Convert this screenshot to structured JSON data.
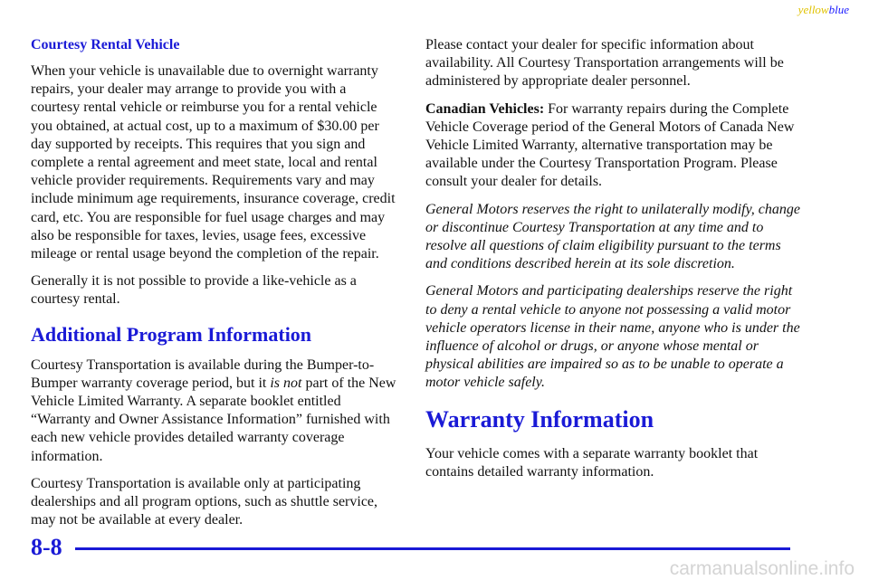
{
  "header": {
    "mark_yellow": "yellow",
    "mark_blue": "blue"
  },
  "left": {
    "rental_heading": "Courtesy Rental Vehicle",
    "rental_para": "When your vehicle is unavailable due to overnight warranty repairs, your dealer may arrange to provide you with a courtesy rental vehicle or reimburse you for a rental vehicle you obtained, at actual cost, up to a maximum of $30.00 per day supported by receipts. This requires that you sign and complete a rental agreement and meet state, local and rental vehicle provider requirements. Requirements vary and may include minimum age requirements, insurance coverage, credit card, etc. You are responsible for fuel usage charges and may also be responsible for taxes, levies, usage fees, excessive mileage or rental usage beyond the completion of the repair.",
    "likevehicle_para": "Generally it is not possible to provide a like-vehicle as a courtesy rental.",
    "program_heading": "Additional Program Information",
    "program_para_before": "Courtesy Transportation is available during the Bumper-to-Bumper warranty coverage period, but it ",
    "program_para_italic": "is not",
    "program_para_after": " part of the New Vehicle Limited Warranty. A separate booklet entitled “Warranty and Owner Assistance Information” furnished with each new vehicle provides detailed warranty coverage information.",
    "dealerships_para": "Courtesy Transportation is available only at participating dealerships and all program options, such as shuttle service, may not be available at every dealer."
  },
  "right": {
    "contact_para": "Please contact your dealer for specific information about availability. All Courtesy Transportation arrangements will be administered by appropriate dealer personnel.",
    "canadian_label": "Canadian Vehicles:",
    "canadian_text": " For warranty repairs during the Complete Vehicle Coverage period of the General Motors of Canada New Vehicle Limited Warranty, alternative transportation may be available under the Courtesy Transportation Program. Please consult your dealer for details.",
    "gm_reserves_para": "General Motors reserves the right to unilaterally modify, change or discontinue Courtesy Transportation at any time and to resolve all questions of claim eligibility pursuant to the terms and conditions described herein at its sole discretion.",
    "gm_deny_para": "General Motors and participating dealerships reserve the right to deny a rental vehicle to anyone not possessing a valid motor vehicle operators license in their name, anyone who is under the influence of alcohol or drugs, or anyone whose mental or physical abilities are impaired so as to be unable to operate a motor vehicle safely.",
    "warranty_heading": "Warranty Information",
    "warranty_para": "Your vehicle comes with a separate warranty booklet that contains detailed warranty information."
  },
  "footer": {
    "page_number": "8-8",
    "watermark": "carmanualsonline.info"
  },
  "colors": {
    "heading_blue": "#1a1ad6",
    "mark_yellow": "#e0c200",
    "mark_blue": "#1a1aff",
    "watermark_gray": "#d4d4d4"
  }
}
